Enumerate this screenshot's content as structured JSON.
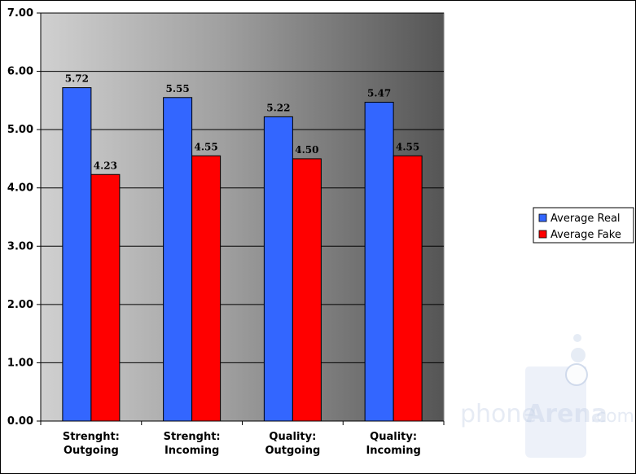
{
  "chart_data": {
    "type": "bar",
    "title": "",
    "xlabel": "",
    "ylabel": "",
    "categories": [
      [
        "Strenght:",
        "Outgoing"
      ],
      [
        "Strenght:",
        "Incoming"
      ],
      [
        "Quality:",
        "Outgoing"
      ],
      [
        "Quality:",
        "Incoming"
      ]
    ],
    "series": [
      {
        "name": "Average Real",
        "color": "#3366ff",
        "values": [
          5.72,
          5.55,
          5.22,
          5.47
        ],
        "labels": [
          "5.72",
          "5.55",
          "5.22",
          "5.47"
        ]
      },
      {
        "name": "Average Fake",
        "color": "#ff0000",
        "values": [
          4.23,
          4.55,
          4.5,
          4.55
        ],
        "labels": [
          "4.23",
          "4.55",
          "4.50",
          "4.55"
        ]
      }
    ],
    "ylim": [
      0,
      7
    ],
    "yticks": [
      0,
      1,
      2,
      3,
      4,
      5,
      6,
      7
    ],
    "ytick_labels": [
      "0.00",
      "1.00",
      "2.00",
      "3.00",
      "4.00",
      "5.00",
      "6.00",
      "7.00"
    ],
    "grid": true,
    "legend_position": "right",
    "plot_background": "gradient light gray to dark gray"
  },
  "watermark": {
    "text_left": "phone",
    "text_mid": "Arena",
    "text_right": ".com"
  }
}
